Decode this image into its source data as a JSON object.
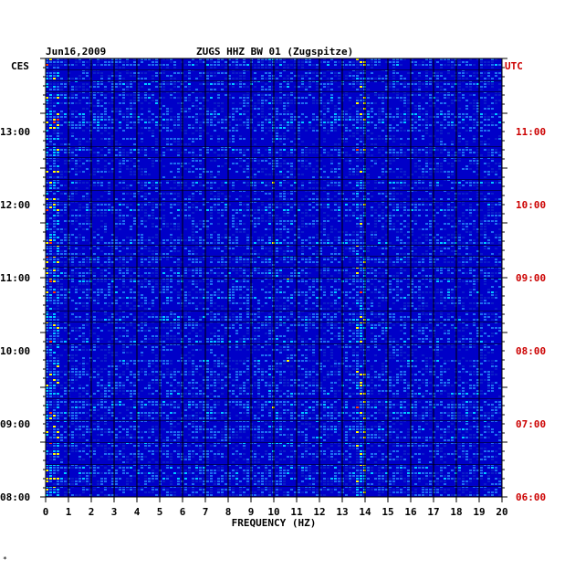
{
  "header": {
    "date": "Jun16,2009",
    "station": "ZUGS HHZ BW 01 (Zugspitze)"
  },
  "chart_data": {
    "type": "heatmap",
    "title": "ZUGS HHZ BW 01 (Zugspitze)",
    "date": "Jun16,2009",
    "xlabel": "FREQUENCY (HZ)",
    "xlim": [
      0,
      20
    ],
    "x_ticks": [
      0,
      1,
      2,
      3,
      4,
      5,
      6,
      7,
      8,
      9,
      10,
      11,
      12,
      13,
      14,
      15,
      16,
      17,
      18,
      19,
      20
    ],
    "left_axis": {
      "label": "CES",
      "ticks": [
        "08:00",
        "09:00",
        "10:00",
        "11:00",
        "12:00",
        "13:00"
      ]
    },
    "right_axis": {
      "label": "UTC",
      "color": "#cc0000",
      "ticks": [
        "06:00",
        "07:00",
        "08:00",
        "09:00",
        "10:00",
        "11:00"
      ]
    },
    "colors": {
      "background": "#0000c8",
      "low": "#0a1ec8",
      "mid": "#1e6ef0",
      "high": "#00c8ff",
      "peak": "#ffff00",
      "max": "#ff3c00",
      "axis_right": "#cc0000"
    }
  },
  "footer": {
    "mark": "*"
  }
}
